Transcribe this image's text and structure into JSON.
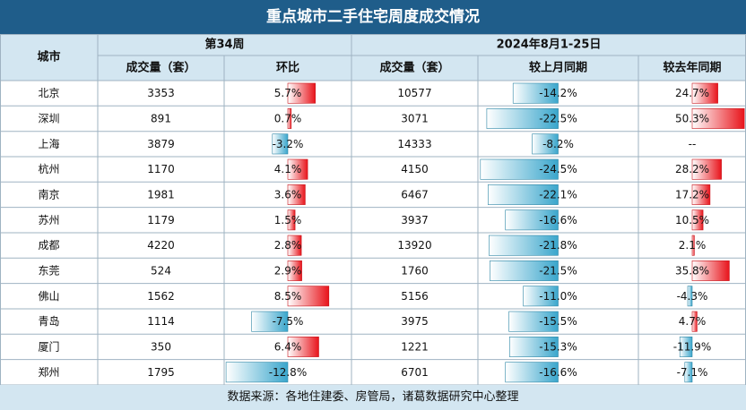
{
  "title": "重点城市二手住宅周度成交情况",
  "headers": {
    "city": "城市",
    "week": "第34周",
    "period": "2024年8月1-25日",
    "week_volume": "成交量（套）",
    "week_ratio": "环比",
    "period_volume": "成交量（套）",
    "mom": "较上月同期",
    "yoy": "较去年同期"
  },
  "footer": "数据来源：各地住建委、房管局，诸葛数据研究中心整理",
  "colors": {
    "header_bg": "#1f5d8a",
    "subheader_bg": "#d3e6f1",
    "positive": "#e8141b",
    "negative": "#3aa6cc"
  },
  "chart_data": {
    "type": "table",
    "columns": [
      "城市",
      "第34周 成交量（套）",
      "第34周 环比",
      "2024年8月1-25日 成交量（套）",
      "较上月同期",
      "较去年同期"
    ],
    "rows": [
      {
        "city": "北京",
        "week_volume": "3353",
        "week_ratio": "5.7%",
        "week_ratio_value": 5.7,
        "period_volume": "10577",
        "mom": "-14.2%",
        "mom_value": -14.2,
        "yoy": "24.7%",
        "yoy_value": 24.7
      },
      {
        "city": "深圳",
        "week_volume": "891",
        "week_ratio": "0.7%",
        "week_ratio_value": 0.7,
        "period_volume": "3071",
        "mom": "-22.5%",
        "mom_value": -22.5,
        "yoy": "50.3%",
        "yoy_value": 50.3
      },
      {
        "city": "上海",
        "week_volume": "3879",
        "week_ratio": "-3.2%",
        "week_ratio_value": -3.2,
        "period_volume": "14333",
        "mom": "-8.2%",
        "mom_value": -8.2,
        "yoy": "--",
        "yoy_value": null
      },
      {
        "city": "杭州",
        "week_volume": "1170",
        "week_ratio": "4.1%",
        "week_ratio_value": 4.1,
        "period_volume": "4150",
        "mom": "-24.5%",
        "mom_value": -24.5,
        "yoy": "28.2%",
        "yoy_value": 28.2
      },
      {
        "city": "南京",
        "week_volume": "1981",
        "week_ratio": "3.6%",
        "week_ratio_value": 3.6,
        "period_volume": "6467",
        "mom": "-22.1%",
        "mom_value": -22.1,
        "yoy": "17.2%",
        "yoy_value": 17.2
      },
      {
        "city": "苏州",
        "week_volume": "1179",
        "week_ratio": "1.5%",
        "week_ratio_value": 1.5,
        "period_volume": "3937",
        "mom": "-16.6%",
        "mom_value": -16.6,
        "yoy": "10.5%",
        "yoy_value": 10.5
      },
      {
        "city": "成都",
        "week_volume": "4220",
        "week_ratio": "2.8%",
        "week_ratio_value": 2.8,
        "period_volume": "13920",
        "mom": "-21.8%",
        "mom_value": -21.8,
        "yoy": "2.1%",
        "yoy_value": 2.1
      },
      {
        "city": "东莞",
        "week_volume": "524",
        "week_ratio": "2.9%",
        "week_ratio_value": 2.9,
        "period_volume": "1760",
        "mom": "-21.5%",
        "mom_value": -21.5,
        "yoy": "35.8%",
        "yoy_value": 35.8
      },
      {
        "city": "佛山",
        "week_volume": "1562",
        "week_ratio": "8.5%",
        "week_ratio_value": 8.5,
        "period_volume": "5156",
        "mom": "-11.0%",
        "mom_value": -11.0,
        "yoy": "-4.3%",
        "yoy_value": -4.3
      },
      {
        "city": "青岛",
        "week_volume": "1114",
        "week_ratio": "-7.5%",
        "week_ratio_value": -7.5,
        "period_volume": "3975",
        "mom": "-15.5%",
        "mom_value": -15.5,
        "yoy": "4.7%",
        "yoy_value": 4.7
      },
      {
        "city": "厦门",
        "week_volume": "350",
        "week_ratio": "6.4%",
        "week_ratio_value": 6.4,
        "period_volume": "1221",
        "mom": "-15.3%",
        "mom_value": -15.3,
        "yoy": "-11.9%",
        "yoy_value": -11.9
      },
      {
        "city": "郑州",
        "week_volume": "1795",
        "week_ratio": "-12.8%",
        "week_ratio_value": -12.8,
        "period_volume": "6701",
        "mom": "-16.6%",
        "mom_value": -16.6,
        "yoy": "-7.1%",
        "yoy_value": -7.1
      }
    ]
  }
}
